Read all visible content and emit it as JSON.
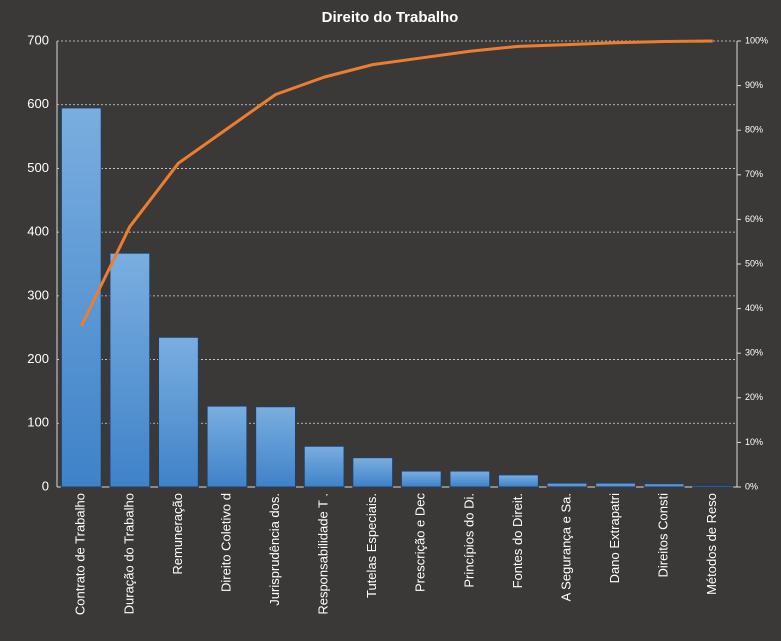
{
  "chart_data": {
    "type": "pareto",
    "title": "Direito do Trabalho",
    "categories": [
      "Contrato de Trabalho",
      "Duração do Trabalho",
      "Remuneração",
      "Direito Coletivo d",
      "Jurisprudência dos.",
      "Responsabilidade T .",
      "Tutelas Especiais.",
      "Prescrição e Dec",
      "Princípios do Di.",
      "Fontes do Direit.",
      "A Segurança e Sa.",
      "Dano Extrapatri",
      "Direitos Consti",
      "Métodos de Reso"
    ],
    "values": [
      595,
      367,
      235,
      127,
      126,
      64,
      46,
      25,
      25,
      19,
      6,
      6,
      5,
      2
    ],
    "color": "#5b9bd5",
    "line_values": [
      36.1,
      58.4,
      72.6,
      80.3,
      88.0,
      91.9,
      94.7,
      96.2,
      97.7,
      98.8,
      99.2,
      99.6,
      99.9,
      100
    ],
    "line_color": "#ed7d31",
    "ylim": [
      0,
      700
    ],
    "yticks": [
      0,
      100,
      200,
      300,
      400,
      500,
      600,
      700
    ],
    "y2lim": [
      0,
      100
    ],
    "y2ticks": [
      {
        "value": 0,
        "label": "0%"
      },
      {
        "value": 10,
        "label": "10%"
      },
      {
        "value": 20,
        "label": "20%"
      },
      {
        "value": 30,
        "label": "30%"
      },
      {
        "value": 40,
        "label": "40%"
      },
      {
        "value": 50,
        "label": "50%"
      },
      {
        "value": 60,
        "label": "60%"
      },
      {
        "value": 70,
        "label": "70%"
      },
      {
        "value": 80,
        "label": "80%"
      },
      {
        "value": 90,
        "label": "90%"
      },
      {
        "value": 100,
        "label": "100%"
      }
    ],
    "grid": true
  }
}
